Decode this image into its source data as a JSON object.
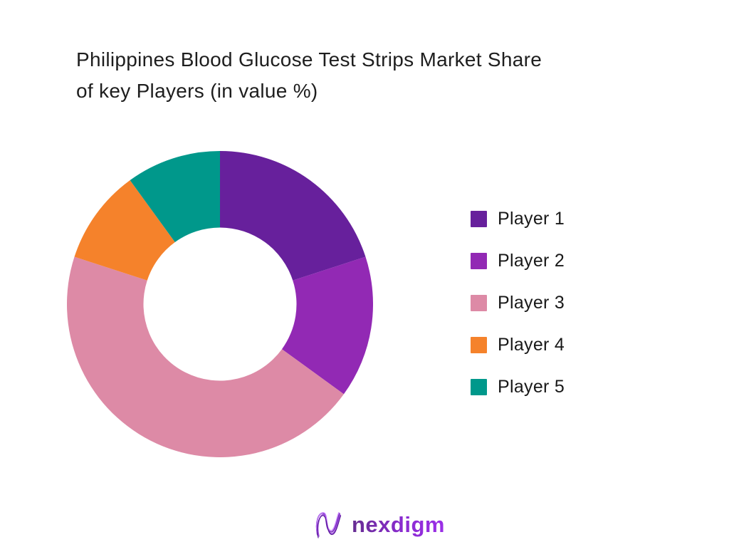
{
  "page": {
    "background": "#ffffff"
  },
  "header": {
    "title_lines": [
      "Philippines Blood Glucose Test Strips Market Share",
      "of key Players (in value %)"
    ]
  },
  "chart_data": {
    "type": "pie",
    "subtype": "donut",
    "title": "Philippines Blood Glucose Test Strips Market Share of key Players (in value %)",
    "categories": [
      "Player 1",
      "Player 2",
      "Player 3",
      "Player 4",
      "Player 5"
    ],
    "values": [
      20,
      15,
      45,
      10,
      10
    ],
    "unit": "%",
    "colors": [
      "#67209C",
      "#9229B4",
      "#DD8AA6",
      "#F5822B",
      "#00988B"
    ],
    "start_angle_deg": 0,
    "direction": "clockwise",
    "inner_radius_ratio": 0.5,
    "legend_position": "right",
    "data_labels": false
  },
  "footer": {
    "brand_name": "nexdigm"
  }
}
